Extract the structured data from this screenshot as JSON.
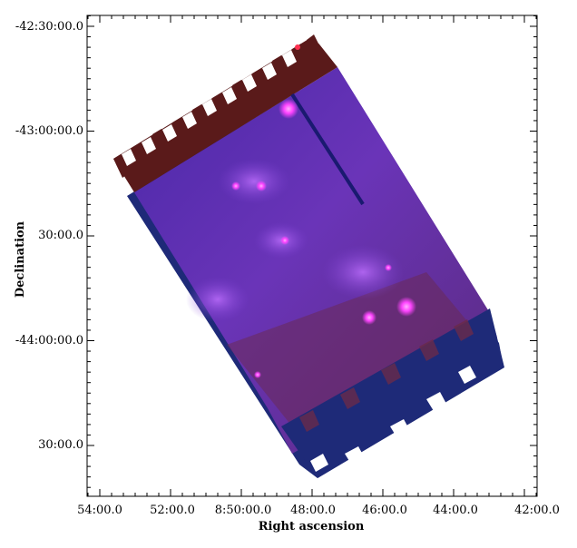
{
  "figure": {
    "xlabel": "Right ascension",
    "ylabel": "Declination",
    "x_ticks": [
      "54:00.0",
      "52:00.0",
      "8:50:00.0",
      "48:00.0",
      "46:00.0",
      "44:00.0",
      "42:00.0"
    ],
    "y_ticks": [
      "-42:30:00.0",
      "-43:00:00.0",
      "30:00.0",
      "-44:00:00.0",
      "30:00.0"
    ],
    "colors": {
      "frame": "#000000",
      "top_band": "#5a1a1a",
      "bottom_band": "#1a2a6e",
      "image_body": "#5e2fb0",
      "bright_sources": "#ff6cff"
    }
  }
}
